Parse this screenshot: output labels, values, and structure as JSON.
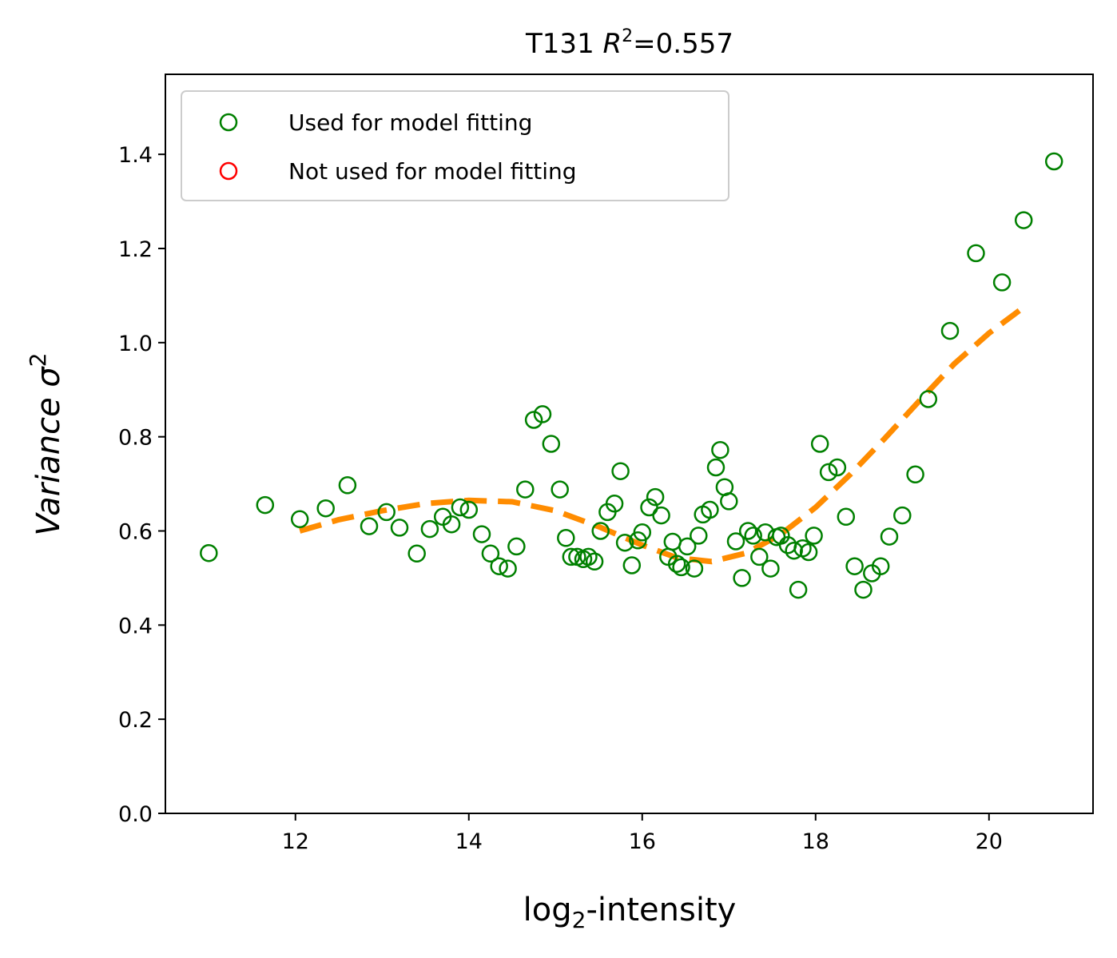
{
  "chart_data": {
    "type": "scatter",
    "title": "T131 R²=0.557",
    "title_parts": {
      "prefix": "T131",
      "r_symbol": "R",
      "r_sup": "2",
      "value": "=0.557"
    },
    "xlabel": "log₂-intensity",
    "xlabel_parts": {
      "base": "log",
      "sub": "2",
      "rest": "-intensity"
    },
    "ylabel": "Variance σ²",
    "ylabel_parts": {
      "word": "Variance",
      "symbol": "σ",
      "sup": "2"
    },
    "xlim": [
      10.5,
      21.2
    ],
    "ylim": [
      0,
      1.57
    ],
    "xticks": [
      12,
      14,
      16,
      18,
      20
    ],
    "yticks": [
      0.0,
      0.2,
      0.4,
      0.6,
      0.8,
      1.0,
      1.2,
      1.4
    ],
    "xtick_labels": [
      "12",
      "14",
      "16",
      "18",
      "20"
    ],
    "ytick_labels": [
      "0.0",
      "0.2",
      "0.4",
      "0.6",
      "0.8",
      "1.0",
      "1.2",
      "1.4"
    ],
    "grid": false,
    "legend": {
      "placement": "top-left",
      "entries": [
        {
          "label": "Used for model fitting",
          "color": "#008000"
        },
        {
          "label": "Not used for model fitting",
          "color": "#ff0000"
        }
      ]
    },
    "series": [
      {
        "name": "Used for model fitting",
        "type": "scatter",
        "marker": "open-circle",
        "color": "#008000",
        "points": [
          [
            11.0,
            0.553
          ],
          [
            11.65,
            0.655
          ],
          [
            12.05,
            0.625
          ],
          [
            12.35,
            0.648
          ],
          [
            12.6,
            0.697
          ],
          [
            12.85,
            0.61
          ],
          [
            13.05,
            0.64
          ],
          [
            13.2,
            0.607
          ],
          [
            13.4,
            0.552
          ],
          [
            13.55,
            0.604
          ],
          [
            13.7,
            0.63
          ],
          [
            13.8,
            0.614
          ],
          [
            13.9,
            0.65
          ],
          [
            14.0,
            0.645
          ],
          [
            14.15,
            0.593
          ],
          [
            14.25,
            0.552
          ],
          [
            14.35,
            0.525
          ],
          [
            14.45,
            0.52
          ],
          [
            14.55,
            0.567
          ],
          [
            14.65,
            0.688
          ],
          [
            14.75,
            0.836
          ],
          [
            14.85,
            0.848
          ],
          [
            14.95,
            0.785
          ],
          [
            15.05,
            0.688
          ],
          [
            15.12,
            0.585
          ],
          [
            15.18,
            0.545
          ],
          [
            15.25,
            0.545
          ],
          [
            15.32,
            0.54
          ],
          [
            15.38,
            0.545
          ],
          [
            15.45,
            0.535
          ],
          [
            15.52,
            0.6
          ],
          [
            15.6,
            0.64
          ],
          [
            15.68,
            0.658
          ],
          [
            15.75,
            0.727
          ],
          [
            15.8,
            0.575
          ],
          [
            15.88,
            0.527
          ],
          [
            15.95,
            0.58
          ],
          [
            16.0,
            0.597
          ],
          [
            16.08,
            0.65
          ],
          [
            16.15,
            0.672
          ],
          [
            16.22,
            0.633
          ],
          [
            16.3,
            0.545
          ],
          [
            16.35,
            0.577
          ],
          [
            16.4,
            0.53
          ],
          [
            16.45,
            0.523
          ],
          [
            16.52,
            0.567
          ],
          [
            16.6,
            0.52
          ],
          [
            16.65,
            0.59
          ],
          [
            16.7,
            0.635
          ],
          [
            16.78,
            0.645
          ],
          [
            16.85,
            0.735
          ],
          [
            16.9,
            0.772
          ],
          [
            16.95,
            0.693
          ],
          [
            17.0,
            0.663
          ],
          [
            17.08,
            0.578
          ],
          [
            17.15,
            0.5
          ],
          [
            17.22,
            0.6
          ],
          [
            17.28,
            0.59
          ],
          [
            17.35,
            0.545
          ],
          [
            17.42,
            0.597
          ],
          [
            17.48,
            0.52
          ],
          [
            17.55,
            0.587
          ],
          [
            17.6,
            0.59
          ],
          [
            17.68,
            0.57
          ],
          [
            17.75,
            0.558
          ],
          [
            17.8,
            0.475
          ],
          [
            17.85,
            0.563
          ],
          [
            17.92,
            0.555
          ],
          [
            17.98,
            0.59
          ],
          [
            18.05,
            0.785
          ],
          [
            18.15,
            0.725
          ],
          [
            18.25,
            0.735
          ],
          [
            18.35,
            0.63
          ],
          [
            18.45,
            0.525
          ],
          [
            18.55,
            0.475
          ],
          [
            18.65,
            0.51
          ],
          [
            18.75,
            0.525
          ],
          [
            18.85,
            0.588
          ],
          [
            19.0,
            0.633
          ],
          [
            19.15,
            0.72
          ],
          [
            19.3,
            0.88
          ],
          [
            19.55,
            1.025
          ],
          [
            19.85,
            1.19
          ],
          [
            20.15,
            1.128
          ],
          [
            20.4,
            1.26
          ],
          [
            20.75,
            1.385
          ]
        ]
      },
      {
        "name": "Not used for model fitting",
        "type": "scatter",
        "marker": "open-circle",
        "color": "#ff0000",
        "points": []
      },
      {
        "type": "line",
        "style": "dashed",
        "color": "#ff8c00",
        "points": [
          [
            12.05,
            0.6
          ],
          [
            12.5,
            0.624
          ],
          [
            13.0,
            0.643
          ],
          [
            13.5,
            0.658
          ],
          [
            14.0,
            0.665
          ],
          [
            14.5,
            0.662
          ],
          [
            15.0,
            0.643
          ],
          [
            15.5,
            0.609
          ],
          [
            16.0,
            0.57
          ],
          [
            16.4,
            0.543
          ],
          [
            16.8,
            0.535
          ],
          [
            17.2,
            0.553
          ],
          [
            17.6,
            0.593
          ],
          [
            18.0,
            0.65
          ],
          [
            18.4,
            0.72
          ],
          [
            18.8,
            0.797
          ],
          [
            19.2,
            0.877
          ],
          [
            19.6,
            0.955
          ],
          [
            20.0,
            1.02
          ],
          [
            20.4,
            1.075
          ]
        ]
      }
    ]
  }
}
